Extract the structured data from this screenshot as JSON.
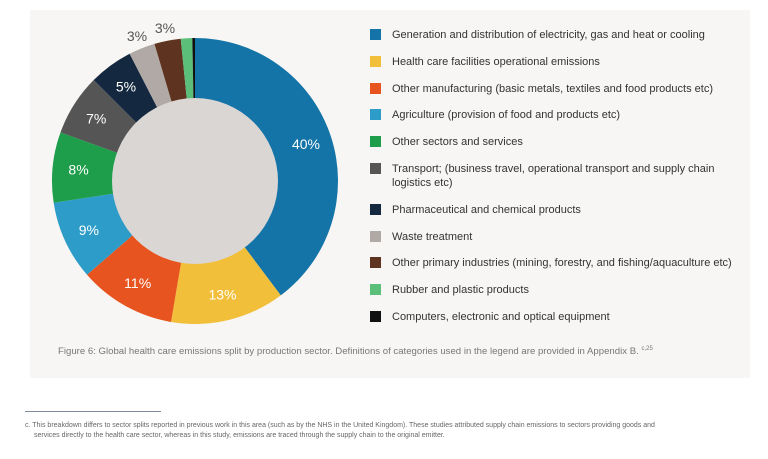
{
  "chart_data": {
    "type": "pie",
    "donut": true,
    "start": "top",
    "direction": "clockwise",
    "center_color": "#dad6d3",
    "slices": [
      {
        "name": "Generation and distribution of electricity, gas and heat or cooling",
        "value": 40,
        "label": "40%",
        "color": "#1474a8"
      },
      {
        "name": "Health care facilities operational emissions",
        "value": 13,
        "label": "13%",
        "color": "#f2bf3a"
      },
      {
        "name": "Other manufacturing (basic metals, textiles and food products etc)",
        "value": 11,
        "label": "11%",
        "color": "#e8541f"
      },
      {
        "name": "Agriculture (provision of food and products etc)",
        "value": 9,
        "label": "9%",
        "color": "#2e9cc8"
      },
      {
        "name": "Other sectors and services",
        "value": 8,
        "label": "8%",
        "color": "#1e9e4a"
      },
      {
        "name": "Transport; (business travel, operational transport and supply chain logistics etc)",
        "value": 7,
        "label": "7%",
        "color": "#555555"
      },
      {
        "name": "Pharmaceutical and chemical products",
        "value": 5,
        "label": "5%",
        "color": "#14293f"
      },
      {
        "name": "Waste treatment",
        "value": 3,
        "label": "3%",
        "color": "#b0a9a6"
      },
      {
        "name": "Other primary industries (mining, forestry, and fishing/aquaculture etc)",
        "value": 3,
        "label": "3%",
        "color": "#5e3420"
      },
      {
        "name": "Rubber and plastic products",
        "value": 1.3,
        "label": "",
        "color": "#5bbf7a"
      },
      {
        "name": "Computers, electronic and optical equipment",
        "value": 0.3,
        "label": "",
        "color": "#111111"
      }
    ],
    "legend_position": "right"
  },
  "caption": {
    "text": "Figure 6: Global health care emissions split by production sector. Definitions of categories used in the legend are provided in Appendix B.",
    "ref": "c,25"
  },
  "footnote": "c.  This breakdown differs to sector splits reported in previous work in this area (such as by the NHS in the United Kingdom). These studies attributed supply chain emissions to sectors providing goods and services directly to the health care sector, whereas in this study, emissions are traced through the supply chain to the original emitter."
}
